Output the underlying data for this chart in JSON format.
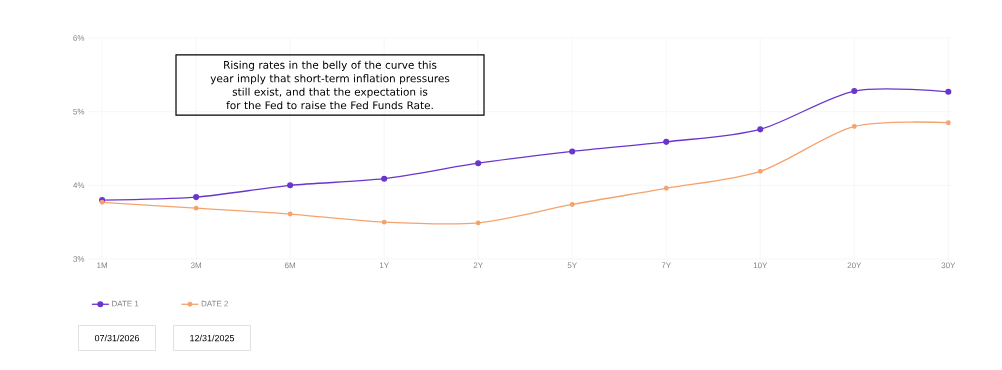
{
  "chart_data": {
    "type": "line",
    "categories": [
      "1M",
      "3M",
      "6M",
      "1Y",
      "2Y",
      "5Y",
      "7Y",
      "10Y",
      "20Y",
      "30Y"
    ],
    "series": [
      {
        "name": "DATE 1",
        "color": "#6a35cc",
        "values": [
          3.8,
          3.84,
          4.0,
          4.09,
          4.3,
          4.46,
          4.59,
          4.76,
          5.28,
          5.27
        ]
      },
      {
        "name": "DATE 2",
        "color": "#f5a36e",
        "values": [
          3.77,
          3.69,
          3.61,
          3.5,
          3.49,
          3.74,
          3.96,
          4.19,
          4.8,
          4.85
        ]
      }
    ],
    "ylim": [
      3,
      6
    ],
    "yticks": [
      {
        "value": 3,
        "label": "3%"
      },
      {
        "value": 4,
        "label": "4%"
      },
      {
        "value": 5,
        "label": "5%"
      },
      {
        "value": 6,
        "label": "6%"
      }
    ],
    "grid": true,
    "legend": "bottom left",
    "marker": "circle",
    "line_style": "solid",
    "annotations": [
      "Rising rates in the belly of the curve this year imply that short-term inflation pressures still exist, and that the expectation is for the Fed to raise the Fed Funds Rate.",
      "07/31/2026",
      "12/31/2025"
    ]
  }
}
